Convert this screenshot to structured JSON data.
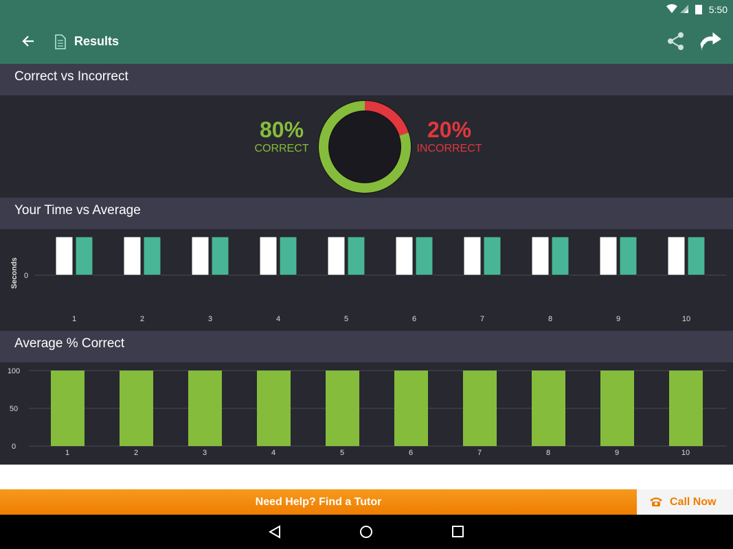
{
  "status_bar": {
    "time": "5:50",
    "icons": [
      "wifi-icon",
      "signal-icon",
      "battery-charging-icon"
    ]
  },
  "app_bar": {
    "title": "Results",
    "back_icon": "arrow-left-icon",
    "title_icon": "checklist-document-icon",
    "actions": [
      "share-icon",
      "forward-icon"
    ]
  },
  "sections": {
    "correct_vs_incorrect": {
      "title": "Correct vs Incorrect",
      "correct_pct": "80%",
      "correct_label": "CORRECT",
      "incorrect_pct": "20%",
      "incorrect_label": "INCORRECT"
    },
    "time_vs_average": {
      "title": "Your Time vs Average"
    },
    "average_correct": {
      "title": "Average % Correct"
    }
  },
  "colors": {
    "correct": "#86bc3c",
    "incorrect": "#e0383e",
    "average": "#48b596",
    "your_time": "#ffffff",
    "appbar": "#357663",
    "cta": "#f28a0a"
  },
  "chart_data": [
    {
      "type": "pie",
      "variant": "donut",
      "slices": [
        {
          "label": "CORRECT",
          "value": 80
        },
        {
          "label": "INCORRECT",
          "value": 20
        }
      ]
    },
    {
      "type": "bar",
      "categories": [
        "1",
        "2",
        "3",
        "4",
        "5",
        "6",
        "7",
        "8",
        "9",
        "10"
      ],
      "ylabel": "Seconds",
      "yticks": [
        "0"
      ],
      "series": [
        {
          "values": [
            1,
            1,
            1,
            1,
            1,
            1,
            1,
            1,
            1,
            1
          ]
        },
        {
          "values": [
            1,
            1,
            1,
            1,
            1,
            1,
            1,
            1,
            1,
            1
          ]
        }
      ]
    },
    {
      "type": "bar",
      "categories": [
        "1",
        "2",
        "3",
        "4",
        "5",
        "6",
        "7",
        "8",
        "9",
        "10"
      ],
      "values": [
        100,
        100,
        100,
        100,
        100,
        100,
        100,
        100,
        100,
        100
      ],
      "ylim": [
        0,
        100
      ],
      "yticks": [
        "0",
        "50",
        "100"
      ],
      "grid": true
    }
  ],
  "footer": {
    "help_text": "Need Help? Find a Tutor",
    "call_label": "Call Now",
    "call_icon": "phone-icon"
  },
  "nav_bar": [
    "back-nav-icon",
    "home-nav-icon",
    "recents-nav-icon"
  ]
}
